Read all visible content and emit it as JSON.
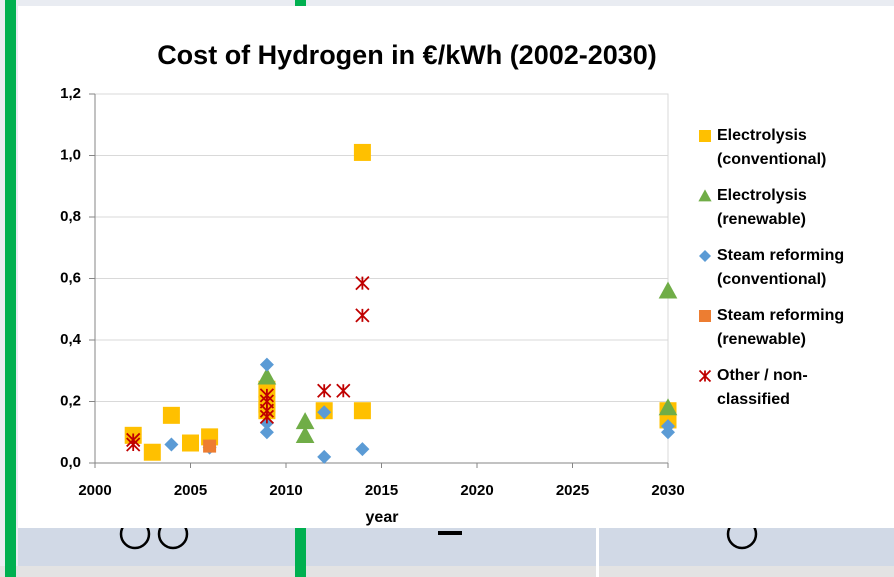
{
  "chart_data": {
    "type": "scatter",
    "title": "Cost of Hydrogen in €/kWh (2002-2030)",
    "x_label": "year",
    "xlim": [
      2000,
      2030
    ],
    "xticks": [
      2000,
      2005,
      2010,
      2015,
      2020,
      2025,
      2030
    ],
    "ylim": [
      0,
      1.2
    ],
    "yticks": [
      {
        "value": 0,
        "label": "0,0"
      },
      {
        "value": 0.2,
        "label": "0,2"
      },
      {
        "value": 0.4,
        "label": "0,4"
      },
      {
        "value": 0.6,
        "label": "0,6"
      },
      {
        "value": 0.8,
        "label": "0,8"
      },
      {
        "value": 1.0,
        "label": "1,0"
      },
      {
        "value": 1.2,
        "label": "1,2"
      }
    ],
    "grid": true,
    "legend": "right",
    "series": [
      {
        "name": "Electrolysis (conventional)",
        "color": "#ffc000",
        "marker": "square",
        "x": [
          2002,
          2003,
          2004,
          2005,
          2006,
          2009,
          2009,
          2009,
          2012,
          2014,
          2014,
          2030,
          2030
        ],
        "values": [
          0.09,
          0.035,
          0.155,
          0.065,
          0.085,
          0.24,
          0.19,
          0.17,
          0.17,
          1.01,
          0.17,
          0.17,
          0.14
        ]
      },
      {
        "name": "Electrolysis (renewable)",
        "color": "#70ad47",
        "marker": "triangle",
        "x": [
          2009,
          2011,
          2011,
          2030,
          2030
        ],
        "values": [
          0.28,
          0.135,
          0.09,
          0.56,
          0.18
        ]
      },
      {
        "name": "Steam reforming (conventional)",
        "color": "#5b9bd5",
        "marker": "diamond",
        "x": [
          2004,
          2006,
          2009,
          2009,
          2009,
          2012,
          2012,
          2014,
          2030,
          2030
        ],
        "values": [
          0.06,
          0.05,
          0.32,
          0.13,
          0.1,
          0.165,
          0.02,
          0.045,
          0.12,
          0.1
        ]
      },
      {
        "name": "Steam reforming (renewable)",
        "color": "#ed7d31",
        "marker": "square",
        "x": [
          2006
        ],
        "values": [
          0.055
        ]
      },
      {
        "name": "Other / non-classified",
        "color": "#c00000",
        "marker": "asterisk",
        "x": [
          2002,
          2002,
          2009,
          2009,
          2009,
          2009,
          2012,
          2013,
          2014,
          2014
        ],
        "values": [
          0.075,
          0.06,
          0.22,
          0.2,
          0.17,
          0.15,
          0.235,
          0.235,
          0.585,
          0.48
        ]
      }
    ]
  }
}
